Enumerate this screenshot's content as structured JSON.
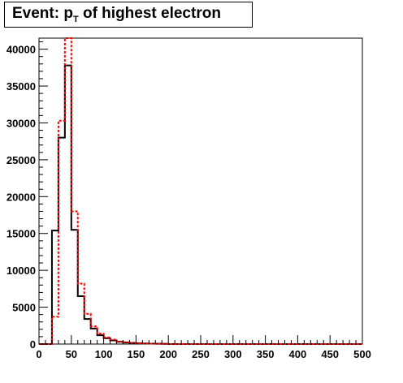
{
  "title": {
    "prefix": "Event: p",
    "subscript": "T",
    "suffix": " of highest electron"
  },
  "chart_data": {
    "type": "histogram",
    "title": "Event: p_T of highest electron",
    "xlabel": "",
    "ylabel": "",
    "xlim": [
      0,
      500
    ],
    "ylim": [
      0,
      41500
    ],
    "bin_width": 10,
    "x_ticks": [
      0,
      50,
      100,
      150,
      200,
      250,
      300,
      350,
      400,
      450,
      500
    ],
    "y_ticks": [
      0,
      5000,
      10000,
      15000,
      20000,
      25000,
      30000,
      35000,
      40000
    ],
    "grid": false,
    "legend": "none",
    "series": [
      {
        "style": "solid",
        "color": "#000000",
        "bin_edges": [
          0,
          10,
          20,
          30,
          40,
          50,
          60,
          70,
          80,
          90,
          100,
          110,
          120,
          130,
          140,
          150,
          160,
          170,
          180,
          190,
          200,
          500
        ],
        "values": [
          0,
          0,
          15400,
          28000,
          37800,
          15500,
          6500,
          3400,
          2100,
          1200,
          800,
          500,
          300,
          200,
          150,
          100,
          70,
          50,
          40,
          30,
          0
        ]
      },
      {
        "style": "dashed",
        "color": "#ff0000",
        "bin_edges": [
          0,
          10,
          20,
          30,
          40,
          50,
          60,
          70,
          80,
          90,
          100,
          110,
          120,
          130,
          140,
          150,
          160,
          170,
          180,
          190,
          200,
          500
        ],
        "values": [
          0,
          0,
          3700,
          30300,
          41500,
          18000,
          8200,
          4100,
          2400,
          1400,
          900,
          600,
          350,
          250,
          170,
          120,
          80,
          60,
          40,
          30,
          0
        ]
      }
    ]
  }
}
